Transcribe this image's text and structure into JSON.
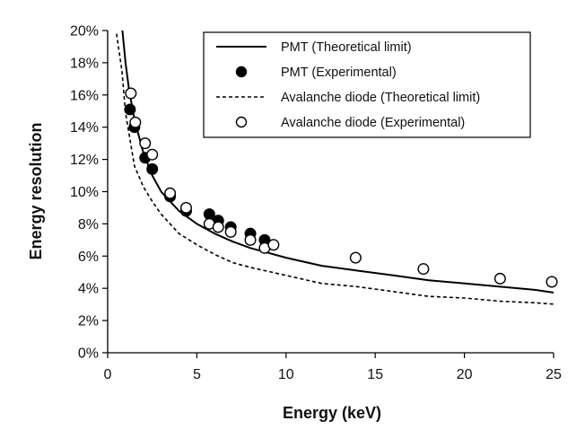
{
  "chart_data": {
    "type": "scatter",
    "title": "",
    "xlabel": "Energy (keV)",
    "ylabel": "Energy resolution",
    "xlim": [
      0,
      25
    ],
    "ylim": [
      0,
      20
    ],
    "x_ticks": [
      "0",
      "5",
      "10",
      "15",
      "20",
      "25"
    ],
    "y_ticks": [
      "0%",
      "2%",
      "4%",
      "6%",
      "8%",
      "10%",
      "12%",
      "14%",
      "16%",
      "18%",
      "20%"
    ],
    "grid": false,
    "legend_position": "top-right",
    "series": [
      {
        "name": "PMT (Theoretical limit)",
        "style": "solid-line",
        "color": "#000000",
        "x": [
          0.8,
          1.0,
          1.2,
          1.5,
          2.0,
          2.5,
          3.0,
          4.0,
          5.0,
          6.0,
          7.0,
          8.0,
          9.0,
          10.0,
          12.0,
          14.0,
          16.0,
          18.0,
          20.0,
          22.0,
          24.0,
          25.2
        ],
        "y": [
          20.3,
          18.0,
          16.3,
          14.5,
          12.4,
          11.0,
          10.0,
          8.8,
          8.0,
          7.4,
          6.9,
          6.5,
          6.2,
          5.9,
          5.4,
          5.1,
          4.8,
          4.5,
          4.3,
          4.1,
          3.9,
          3.7
        ]
      },
      {
        "name": "PMT (Experimental)",
        "style": "filled-marker",
        "color": "#000000",
        "x": [
          1.25,
          1.5,
          2.1,
          2.5,
          3.5,
          4.4,
          5.7,
          6.2,
          6.9,
          8.0,
          8.8
        ],
        "y": [
          15.1,
          14.0,
          12.1,
          11.4,
          9.7,
          8.8,
          8.6,
          8.2,
          7.8,
          7.4,
          7.0
        ]
      },
      {
        "name": "Avalanche diode (Theoretical limit)",
        "style": "dashed-line",
        "color": "#000000",
        "x": [
          0.5,
          0.8,
          1.0,
          1.5,
          2.0,
          2.5,
          3.0,
          4.0,
          5.0,
          6.0,
          7.0,
          8.0,
          10.0,
          12.0,
          14.0,
          16.0,
          18.0,
          20.0,
          22.0,
          24.0,
          25.2
        ],
        "y": [
          19.8,
          17.5,
          14.9,
          11.6,
          10.3,
          9.4,
          8.6,
          7.4,
          6.7,
          6.1,
          5.6,
          5.3,
          4.8,
          4.3,
          4.1,
          3.8,
          3.5,
          3.4,
          3.2,
          3.1,
          3.0
        ]
      },
      {
        "name": "Avalanche diode (Experimental)",
        "style": "open-marker",
        "color": "#000000",
        "x": [
          1.3,
          1.55,
          2.1,
          2.5,
          3.5,
          4.4,
          5.7,
          6.2,
          6.9,
          8.0,
          8.8,
          9.3,
          13.9,
          17.7,
          22.0,
          24.9
        ],
        "y": [
          16.1,
          14.3,
          13.0,
          12.3,
          9.9,
          9.0,
          8.0,
          7.8,
          7.5,
          7.0,
          6.5,
          6.7,
          5.9,
          5.2,
          4.6,
          4.4
        ]
      }
    ]
  }
}
